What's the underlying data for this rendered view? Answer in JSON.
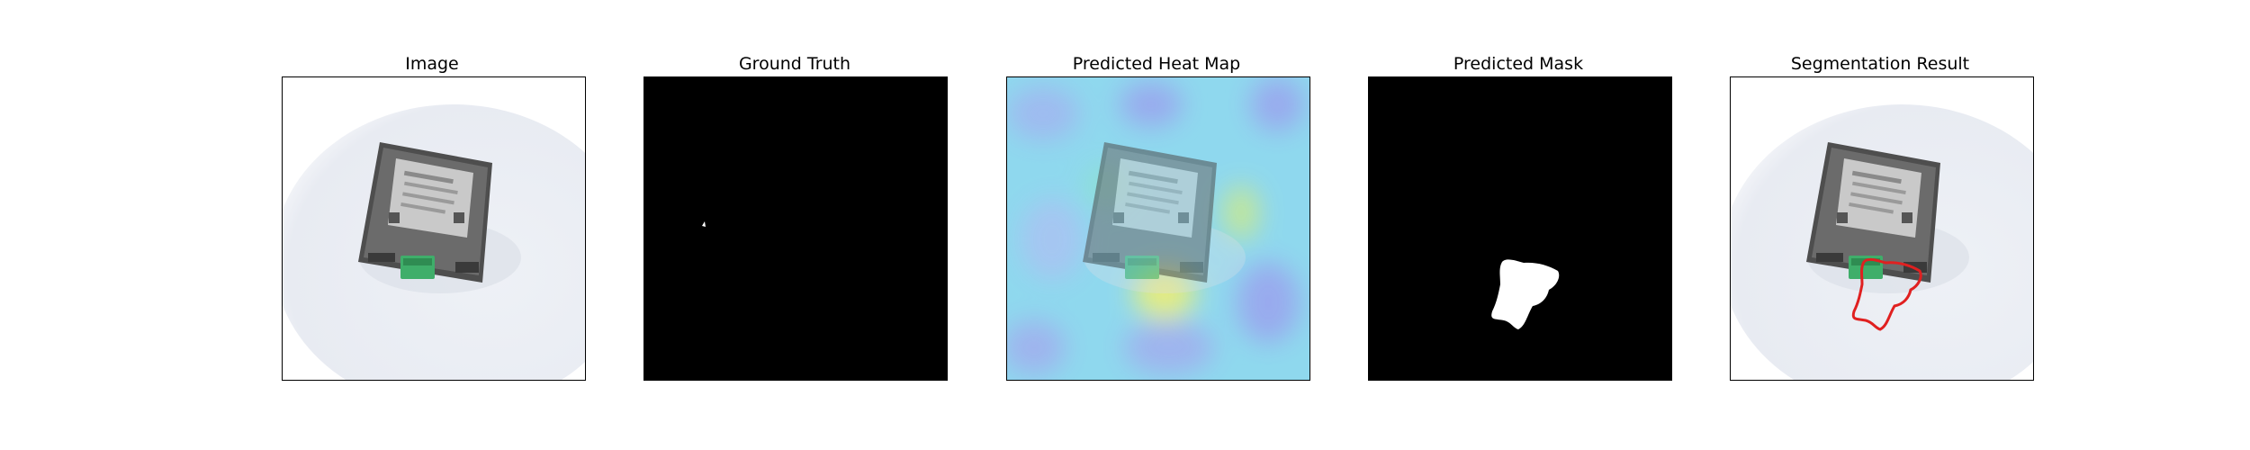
{
  "panels": [
    {
      "title": "Image"
    },
    {
      "title": "Ground Truth"
    },
    {
      "title": "Predicted Heat Map"
    },
    {
      "title": "Predicted Mask"
    },
    {
      "title": "Segmentation Result"
    }
  ],
  "colors": {
    "background": "#ffffff",
    "mask_background": "#000000",
    "mask_foreground": "#ffffff",
    "contour": "#e02020",
    "device_body": "#5a5a5a",
    "device_label": "#c8c8c8",
    "terminal_green": "#3fae6a"
  }
}
